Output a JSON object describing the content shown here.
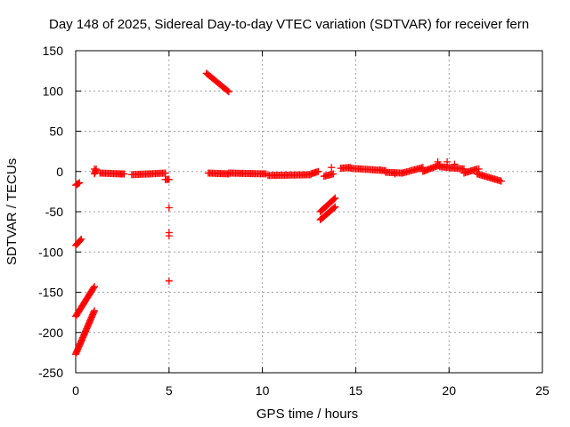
{
  "chart_data": {
    "type": "scatter",
    "title": "Day 148 of 2025, Sidereal Day-to-day VTEC variation (SDTVAR) for receiver fern",
    "xlabel": "GPS time / hours",
    "ylabel": "SDTVAR / TECUs",
    "xlim": [
      0,
      25
    ],
    "ylim": [
      -250,
      150
    ],
    "xticks": [
      0,
      5,
      10,
      15,
      20,
      25
    ],
    "yticks": [
      -250,
      -200,
      -150,
      -100,
      -50,
      0,
      50,
      100,
      150
    ],
    "grid": true,
    "marker": "plus",
    "color": "#ff0000",
    "segments": [
      {
        "x": [
          0.0,
          0.2
        ],
        "y": [
          -17,
          -14
        ]
      },
      {
        "x": [
          0.0,
          0.3
        ],
        "y": [
          -92,
          -84
        ]
      },
      {
        "x": [
          0.0,
          1.0
        ],
        "y": [
          -180,
          -143
        ]
      },
      {
        "x": [
          0.0,
          1.0
        ],
        "y": [
          -227,
          -173
        ]
      },
      {
        "x": [
          1.0,
          1.1
        ],
        "y": [
          -3,
          3
        ]
      },
      {
        "x": [
          1.3,
          2.4
        ],
        "y": [
          -2,
          -3
        ]
      },
      {
        "x": [
          2.4,
          2.6
        ],
        "y": [
          -3,
          -3
        ]
      },
      {
        "x": [
          3.0,
          4.8
        ],
        "y": [
          -4,
          -2
        ]
      },
      {
        "x": [
          4.8,
          5.0
        ],
        "y": [
          -10,
          -10
        ]
      },
      {
        "x": [
          7.0,
          8.2
        ],
        "y": [
          122,
          99
        ]
      },
      {
        "x": [
          7.1,
          8.2
        ],
        "y": [
          -2,
          -3
        ]
      },
      {
        "x": [
          8.2,
          10.2
        ],
        "y": [
          -2,
          -3
        ]
      },
      {
        "x": [
          10.3,
          12.6
        ],
        "y": [
          -5,
          -4
        ]
      },
      {
        "x": [
          12.6,
          13.0
        ],
        "y": [
          -3,
          0
        ]
      },
      {
        "x": [
          13.1,
          13.9
        ],
        "y": [
          -50,
          -33
        ]
      },
      {
        "x": [
          13.1,
          13.9
        ],
        "y": [
          -60,
          -44
        ]
      },
      {
        "x": [
          13.3,
          13.8
        ],
        "y": [
          -6,
          -3
        ]
      },
      {
        "x": [
          14.2,
          14.7
        ],
        "y": [
          4,
          5
        ]
      },
      {
        "x": [
          14.7,
          16.6
        ],
        "y": [
          4,
          1
        ]
      },
      {
        "x": [
          16.6,
          17.5
        ],
        "y": [
          -1,
          -2
        ]
      },
      {
        "x": [
          17.5,
          18.6
        ],
        "y": [
          -2,
          5
        ]
      },
      {
        "x": [
          18.6,
          19.5
        ],
        "y": [
          0,
          8
        ]
      },
      {
        "x": [
          19.5,
          20.8
        ],
        "y": [
          6,
          3
        ]
      },
      {
        "x": [
          20.8,
          21.5
        ],
        "y": [
          -2,
          3
        ]
      },
      {
        "x": [
          21.5,
          22.8
        ],
        "y": [
          -3,
          -12
        ]
      }
    ],
    "points": [
      {
        "x": 1.0,
        "y": 3
      },
      {
        "x": 13.7,
        "y": 5
      },
      {
        "x": 16.3,
        "y": 2
      },
      {
        "x": 17.1,
        "y": -3
      },
      {
        "x": 19.4,
        "y": 12
      },
      {
        "x": 19.9,
        "y": 12
      },
      {
        "x": 20.3,
        "y": 9
      },
      {
        "x": 21.6,
        "y": 3
      },
      {
        "x": 5.0,
        "y": -45
      },
      {
        "x": 5.0,
        "y": -76
      },
      {
        "x": 5.0,
        "y": -80
      },
      {
        "x": 5.0,
        "y": -136
      }
    ]
  }
}
